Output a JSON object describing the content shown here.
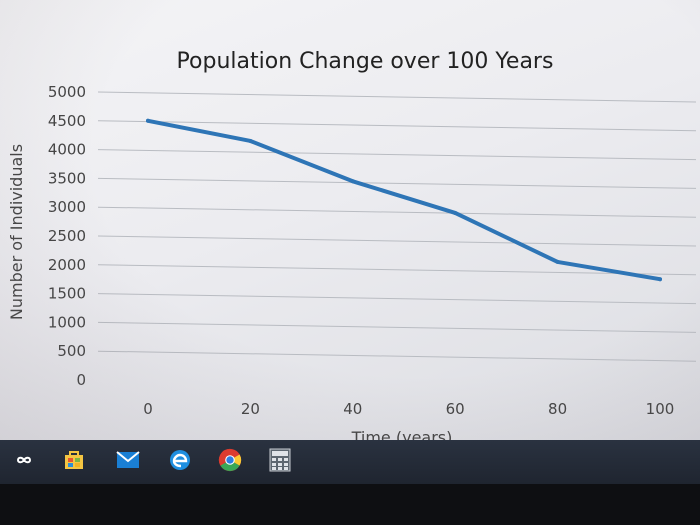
{
  "chart_data": {
    "type": "line",
    "title": "Population Change over 100 Years",
    "xlabel": "Time (years)",
    "ylabel": "Number of Individuals",
    "x": [
      0,
      20,
      40,
      60,
      80,
      100
    ],
    "y_ticks": [
      0,
      500,
      1000,
      1500,
      2000,
      2500,
      3000,
      3500,
      4000,
      4500,
      5000
    ],
    "x_ticks": [
      0,
      20,
      40,
      60,
      80,
      100
    ],
    "ylim": [
      0,
      5000
    ],
    "xlim": [
      0,
      100
    ],
    "grid": "horizontal",
    "series": [
      {
        "values": [
          4500,
          4150,
          3450,
          2900,
          2050,
          1750
        ],
        "color": "#2e75b6"
      }
    ]
  },
  "taskbar": {
    "icons": [
      "task-view-icon",
      "store-icon",
      "mail-icon",
      "edge-icon",
      "chrome-icon",
      "calculator-icon"
    ]
  }
}
